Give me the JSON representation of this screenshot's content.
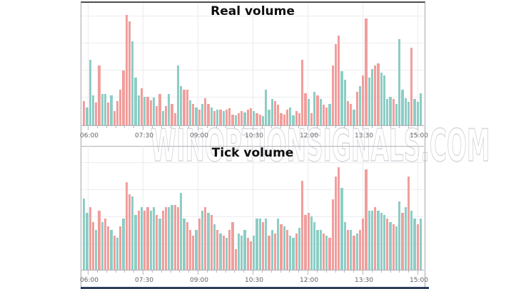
{
  "watermark": "WINOPTIONSIGNALS.COM",
  "colors": {
    "bar_red": "#f19e9c",
    "bar_teal": "#8dcdc5",
    "navy_strip": "#2e3e5c",
    "gridline": "#ececef",
    "axis_line": "#b0b0b8",
    "label_text": "#5f6368",
    "title_text": "#0e0e0e",
    "background": "#ffffff"
  },
  "chart_data": [
    {
      "type": "bar",
      "title": "Real volume",
      "x_tick_labels": [
        "06:00",
        "07:30",
        "09:00",
        "10:30",
        "12:00",
        "13:30",
        "15:00"
      ],
      "legend": "none",
      "y_axis": "none shown (relative volume, bar height in px)",
      "height_unit": "px",
      "color_key": {
        "r": "salmon (down/sell volume)",
        "g": "teal (up/buy volume)"
      },
      "bars": [
        [
          "r",
          34
        ],
        [
          "g",
          25
        ],
        [
          "g",
          92
        ],
        [
          "g",
          42
        ],
        [
          "r",
          32
        ],
        [
          "r",
          84
        ],
        [
          "g",
          44
        ],
        [
          "g",
          44
        ],
        [
          "r",
          32
        ],
        [
          "g",
          42
        ],
        [
          "r",
          20
        ],
        [
          "r",
          34
        ],
        [
          "r",
          50
        ],
        [
          "r",
          77
        ],
        [
          "r",
          155
        ],
        [
          "r",
          146
        ],
        [
          "g",
          118
        ],
        [
          "g",
          67
        ],
        [
          "g",
          42
        ],
        [
          "r",
          52
        ],
        [
          "g",
          40
        ],
        [
          "r",
          40
        ],
        [
          "r",
          35
        ],
        [
          "g",
          39
        ],
        [
          "r",
          27
        ],
        [
          "r",
          44
        ],
        [
          "g",
          20
        ],
        [
          "r",
          27
        ],
        [
          "g",
          44
        ],
        [
          "r",
          30
        ],
        [
          "r",
          17
        ],
        [
          "g",
          84
        ],
        [
          "g",
          55
        ],
        [
          "r",
          50
        ],
        [
          "r",
          50
        ],
        [
          "g",
          35
        ],
        [
          "r",
          30
        ],
        [
          "g",
          25
        ],
        [
          "r",
          22
        ],
        [
          "g",
          30
        ],
        [
          "r",
          38
        ],
        [
          "r",
          30
        ],
        [
          "g",
          25
        ],
        [
          "r",
          20
        ],
        [
          "g",
          22
        ],
        [
          "r",
          22
        ],
        [
          "g",
          20
        ],
        [
          "r",
          22
        ],
        [
          "r",
          24
        ],
        [
          "r",
          15
        ],
        [
          "g",
          14
        ],
        [
          "r",
          17
        ],
        [
          "r",
          20
        ],
        [
          "g",
          18
        ],
        [
          "r",
          22
        ],
        [
          "r",
          24
        ],
        [
          "g",
          20
        ],
        [
          "r",
          17
        ],
        [
          "r",
          15
        ],
        [
          "g",
          13
        ],
        [
          "g",
          50
        ],
        [
          "g",
          22
        ],
        [
          "g",
          37
        ],
        [
          "r",
          34
        ],
        [
          "r",
          29
        ],
        [
          "r",
          17
        ],
        [
          "r",
          15
        ],
        [
          "r",
          22
        ],
        [
          "g",
          25
        ],
        [
          "g",
          14
        ],
        [
          "r",
          20
        ],
        [
          "r",
          17
        ],
        [
          "r",
          92
        ],
        [
          "r",
          45
        ],
        [
          "g",
          37
        ],
        [
          "r",
          17
        ],
        [
          "g",
          47
        ],
        [
          "r",
          42
        ],
        [
          "g",
          37
        ],
        [
          "r",
          29
        ],
        [
          "r",
          25
        ],
        [
          "g",
          30
        ],
        [
          "r",
          84
        ],
        [
          "r",
          114
        ],
        [
          "r",
          126
        ],
        [
          "g",
          76
        ],
        [
          "g",
          64
        ],
        [
          "r",
          34
        ],
        [
          "r",
          30
        ],
        [
          "g",
          22
        ],
        [
          "r",
          47
        ],
        [
          "g",
          55
        ],
        [
          "r",
          70
        ],
        [
          "r",
          150
        ],
        [
          "g",
          67
        ],
        [
          "g",
          79
        ],
        [
          "r",
          84
        ],
        [
          "r",
          87
        ],
        [
          "g",
          74
        ],
        [
          "g",
          70
        ],
        [
          "g",
          37
        ],
        [
          "g",
          40
        ],
        [
          "r",
          37
        ],
        [
          "g",
          30
        ],
        [
          "g",
          121
        ],
        [
          "g",
          50
        ],
        [
          "g",
          38
        ],
        [
          "g",
          33
        ],
        [
          "r",
          109
        ],
        [
          "g",
          37
        ],
        [
          "g",
          33
        ],
        [
          "g",
          45
        ]
      ]
    },
    {
      "type": "bar",
      "title": "Tick volume",
      "x_tick_labels": [
        "06:00",
        "07:30",
        "09:00",
        "10:30",
        "12:00",
        "13:30",
        "15:00"
      ],
      "legend": "none",
      "y_axis": "none shown (relative volume, bar height in px)",
      "height_unit": "px",
      "color_key": {
        "r": "salmon (down/sell volume)",
        "g": "teal (up/buy volume)"
      },
      "bars": [
        [
          "g",
          100
        ],
        [
          "g",
          80
        ],
        [
          "r",
          88
        ],
        [
          "r",
          67
        ],
        [
          "g",
          56
        ],
        [
          "r",
          83
        ],
        [
          "g",
          67
        ],
        [
          "r",
          72
        ],
        [
          "r",
          61
        ],
        [
          "g",
          56
        ],
        [
          "r",
          48
        ],
        [
          "g",
          45
        ],
        [
          "r",
          61
        ],
        [
          "g",
          72
        ],
        [
          "r",
          123
        ],
        [
          "r",
          106
        ],
        [
          "g",
          103
        ],
        [
          "g",
          77
        ],
        [
          "r",
          83
        ],
        [
          "g",
          88
        ],
        [
          "r",
          83
        ],
        [
          "r",
          88
        ],
        [
          "g",
          83
        ],
        [
          "g",
          88
        ],
        [
          "r",
          77
        ],
        [
          "g",
          72
        ],
        [
          "r",
          83
        ],
        [
          "r",
          88
        ],
        [
          "g",
          88
        ],
        [
          "g",
          91
        ],
        [
          "r",
          91
        ],
        [
          "r",
          88
        ],
        [
          "g",
          108
        ],
        [
          "g",
          72
        ],
        [
          "r",
          67
        ],
        [
          "r",
          56
        ],
        [
          "r",
          48
        ],
        [
          "g",
          56
        ],
        [
          "r",
          72
        ],
        [
          "g",
          83
        ],
        [
          "r",
          88
        ],
        [
          "g",
          80
        ],
        [
          "r",
          77
        ],
        [
          "g",
          64
        ],
        [
          "r",
          56
        ],
        [
          "g",
          51
        ],
        [
          "r",
          48
        ],
        [
          "g",
          45
        ],
        [
          "r",
          56
        ],
        [
          "r",
          67
        ],
        [
          "r",
          29
        ],
        [
          "g",
          51
        ],
        [
          "g",
          48
        ],
        [
          "g",
          56
        ],
        [
          "r",
          45
        ],
        [
          "r",
          40
        ],
        [
          "g",
          48
        ],
        [
          "g",
          72
        ],
        [
          "g",
          72
        ],
        [
          "r",
          67
        ],
        [
          "g",
          72
        ],
        [
          "r",
          48
        ],
        [
          "g",
          56
        ],
        [
          "r",
          51
        ],
        [
          "g",
          72
        ],
        [
          "r",
          64
        ],
        [
          "g",
          61
        ],
        [
          "r",
          56
        ],
        [
          "g",
          48
        ],
        [
          "g",
          45
        ],
        [
          "r",
          51
        ],
        [
          "g",
          59
        ],
        [
          "r",
          125
        ],
        [
          "r",
          77
        ],
        [
          "r",
          80
        ],
        [
          "g",
          75
        ],
        [
          "g",
          67
        ],
        [
          "g",
          56
        ],
        [
          "g",
          56
        ],
        [
          "r",
          51
        ],
        [
          "g",
          48
        ],
        [
          "r",
          45
        ],
        [
          "r",
          99
        ],
        [
          "r",
          131
        ],
        [
          "r",
          144
        ],
        [
          "g",
          115
        ],
        [
          "g",
          67
        ],
        [
          "r",
          56
        ],
        [
          "g",
          56
        ],
        [
          "r",
          48
        ],
        [
          "g",
          51
        ],
        [
          "r",
          56
        ],
        [
          "r",
          72
        ],
        [
          "r",
          141
        ],
        [
          "g",
          83
        ],
        [
          "g",
          83
        ],
        [
          "r",
          88
        ],
        [
          "g",
          83
        ],
        [
          "g",
          80
        ],
        [
          "g",
          77
        ],
        [
          "r",
          72
        ],
        [
          "g",
          67
        ],
        [
          "r",
          64
        ],
        [
          "g",
          61
        ],
        [
          "g",
          96
        ],
        [
          "r",
          80
        ],
        [
          "g",
          88
        ],
        [
          "r",
          131
        ],
        [
          "g",
          83
        ],
        [
          "g",
          72
        ],
        [
          "r",
          64
        ],
        [
          "g",
          72
        ]
      ]
    }
  ]
}
